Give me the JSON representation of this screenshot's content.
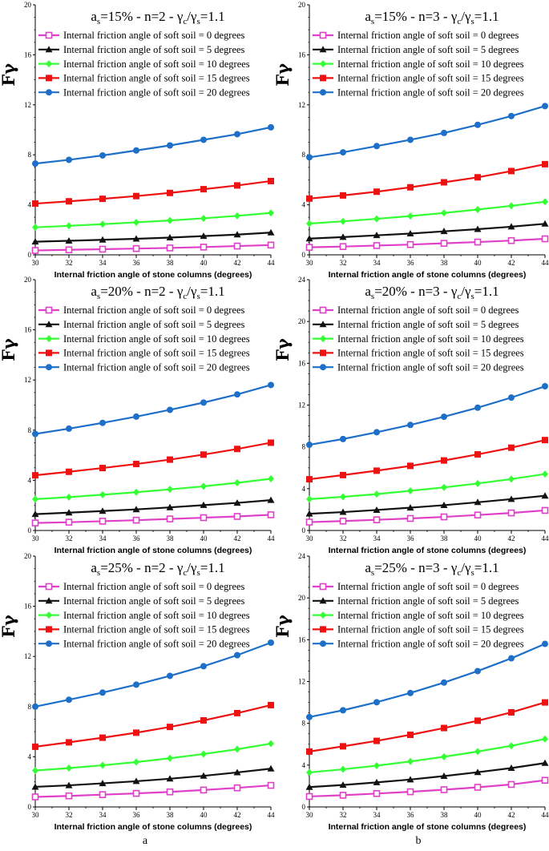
{
  "panel_labels": [
    "a",
    "b"
  ],
  "colors": {
    "s0": "#e040c8",
    "s5": "#111111",
    "s10": "#33ff33",
    "s15": "#ee1111",
    "s20": "#1e6fc8"
  },
  "chart_data": [
    {
      "type": "line",
      "col": 0,
      "row": 0,
      "title": {
        "a_pct": "15%",
        "n": "2",
        "ratio": "1.1"
      },
      "xlabel": "Internal friction angle of stone columns (degrees)",
      "ylabel": "Fγ",
      "xlim": [
        30,
        44
      ],
      "ylim": [
        0,
        20
      ],
      "xticks": [
        "30",
        "32",
        "34",
        "36",
        "38",
        "40",
        "42",
        "44"
      ],
      "yticks": [
        "0",
        "4",
        "8",
        "12",
        "16",
        "20"
      ],
      "x": [
        30,
        32,
        34,
        36,
        38,
        40,
        42,
        44
      ],
      "legend": "top",
      "series": [
        {
          "name": "Internal friction angle of soft soil = 0 degrees",
          "color": "#e040c8",
          "marker": "square-open",
          "values": [
            0.35,
            0.4,
            0.45,
            0.5,
            0.55,
            0.62,
            0.7,
            0.78
          ]
        },
        {
          "name": "Internal friction angle of soft soil = 5 degrees",
          "color": "#111111",
          "marker": "triangle",
          "values": [
            1.05,
            1.12,
            1.2,
            1.28,
            1.38,
            1.5,
            1.62,
            1.78
          ]
        },
        {
          "name": "Internal friction angle of soft soil = 10 degrees",
          "color": "#33ff33",
          "marker": "diamond",
          "values": [
            2.2,
            2.32,
            2.45,
            2.6,
            2.75,
            2.92,
            3.12,
            3.35
          ]
        },
        {
          "name": "Internal friction angle of soft soil = 15 degrees",
          "color": "#ee1111",
          "marker": "square",
          "values": [
            4.1,
            4.28,
            4.48,
            4.7,
            4.95,
            5.25,
            5.55,
            5.9
          ]
        },
        {
          "name": "Internal friction angle of soft soil = 20 degrees",
          "color": "#1e6fc8",
          "marker": "circle",
          "values": [
            7.3,
            7.6,
            7.95,
            8.35,
            8.75,
            9.2,
            9.65,
            10.2
          ]
        }
      ]
    },
    {
      "type": "line",
      "col": 1,
      "row": 0,
      "title": {
        "a_pct": "15%",
        "n": "3",
        "ratio": "1.1"
      },
      "xlabel": "Internal friction angle of stone columns (degrees)",
      "ylabel": "Fγ",
      "xlim": [
        30,
        44
      ],
      "ylim": [
        0,
        20
      ],
      "xticks": [
        "30",
        "32",
        "34",
        "36",
        "38",
        "40",
        "42",
        "44"
      ],
      "yticks": [
        "0",
        "4",
        "8",
        "12",
        "16",
        "20"
      ],
      "x": [
        30,
        32,
        34,
        36,
        38,
        40,
        42,
        44
      ],
      "legend": "top",
      "series": [
        {
          "name": "Internal friction angle of soft soil = 0 degrees",
          "color": "#e040c8",
          "marker": "square-open",
          "values": [
            0.6,
            0.66,
            0.74,
            0.82,
            0.92,
            1.02,
            1.14,
            1.28
          ]
        },
        {
          "name": "Internal friction angle of soft soil = 5 degrees",
          "color": "#111111",
          "marker": "triangle",
          "values": [
            1.3,
            1.42,
            1.56,
            1.7,
            1.88,
            2.05,
            2.25,
            2.48
          ]
        },
        {
          "name": "Internal friction angle of soft soil = 10 degrees",
          "color": "#33ff33",
          "marker": "diamond",
          "values": [
            2.5,
            2.68,
            2.88,
            3.1,
            3.35,
            3.62,
            3.92,
            4.25
          ]
        },
        {
          "name": "Internal friction angle of soft soil = 15 degrees",
          "color": "#ee1111",
          "marker": "square",
          "values": [
            4.5,
            4.75,
            5.05,
            5.4,
            5.8,
            6.2,
            6.7,
            7.25
          ]
        },
        {
          "name": "Internal friction angle of soft soil = 20 degrees",
          "color": "#1e6fc8",
          "marker": "circle",
          "values": [
            7.8,
            8.2,
            8.7,
            9.2,
            9.75,
            10.4,
            11.1,
            11.9
          ]
        }
      ]
    },
    {
      "type": "line",
      "col": 0,
      "row": 1,
      "title": {
        "a_pct": "20%",
        "n": "2",
        "ratio": "1.1"
      },
      "xlabel": "Internal friction angle of stone columns (degrees)",
      "ylabel": "Fγ",
      "xlim": [
        30,
        44
      ],
      "ylim": [
        0,
        20
      ],
      "xticks": [
        "30",
        "32",
        "34",
        "36",
        "38",
        "40",
        "42",
        "44"
      ],
      "yticks": [
        "0",
        "4",
        "8",
        "12",
        "16",
        "20"
      ],
      "x": [
        30,
        32,
        34,
        36,
        38,
        40,
        42,
        44
      ],
      "legend": "top",
      "series": [
        {
          "name": "Internal friction angle of soft soil = 0 degrees",
          "color": "#e040c8",
          "marker": "square-open",
          "values": [
            0.6,
            0.66,
            0.74,
            0.82,
            0.92,
            1.02,
            1.12,
            1.25
          ]
        },
        {
          "name": "Internal friction angle of soft soil = 5 degrees",
          "color": "#111111",
          "marker": "triangle",
          "values": [
            1.3,
            1.42,
            1.55,
            1.68,
            1.84,
            2.02,
            2.2,
            2.42
          ]
        },
        {
          "name": "Internal friction angle of soft soil = 10 degrees",
          "color": "#33ff33",
          "marker": "diamond",
          "values": [
            2.5,
            2.66,
            2.85,
            3.05,
            3.28,
            3.52,
            3.8,
            4.12
          ]
        },
        {
          "name": "Internal friction angle of soft soil = 15 degrees",
          "color": "#ee1111",
          "marker": "square",
          "values": [
            4.4,
            4.68,
            4.98,
            5.3,
            5.65,
            6.05,
            6.5,
            7.0
          ]
        },
        {
          "name": "Internal friction angle of soft soil = 20 degrees",
          "color": "#1e6fc8",
          "marker": "circle",
          "values": [
            7.7,
            8.12,
            8.58,
            9.08,
            9.62,
            10.2,
            10.85,
            11.6
          ]
        }
      ]
    },
    {
      "type": "line",
      "col": 1,
      "row": 1,
      "title": {
        "a_pct": "20%",
        "n": "3",
        "ratio": "1.1"
      },
      "xlabel": "Internal friction angle of stone columns (degrees)",
      "ylabel": "Fγ",
      "xlim": [
        30,
        44
      ],
      "ylim": [
        0,
        24
      ],
      "xticks": [
        "30",
        "32",
        "34",
        "36",
        "38",
        "40",
        "42",
        "44"
      ],
      "yticks": [
        "0",
        "4",
        "8",
        "12",
        "16",
        "20",
        "24"
      ],
      "x": [
        30,
        32,
        34,
        36,
        38,
        40,
        42,
        44
      ],
      "legend": "top",
      "series": [
        {
          "name": "Internal friction angle of soft soil = 0 degrees",
          "color": "#e040c8",
          "marker": "square-open",
          "values": [
            0.8,
            0.9,
            1.02,
            1.15,
            1.3,
            1.48,
            1.68,
            1.92
          ]
        },
        {
          "name": "Internal friction angle of soft soil = 5 degrees",
          "color": "#111111",
          "marker": "triangle",
          "values": [
            1.6,
            1.76,
            1.96,
            2.18,
            2.42,
            2.7,
            3.0,
            3.32
          ]
        },
        {
          "name": "Internal friction angle of soft soil = 10 degrees",
          "color": "#33ff33",
          "marker": "diamond",
          "values": [
            3.0,
            3.22,
            3.48,
            3.8,
            4.12,
            4.5,
            4.92,
            5.4
          ]
        },
        {
          "name": "Internal friction angle of soft soil = 15 degrees",
          "color": "#ee1111",
          "marker": "square",
          "values": [
            4.9,
            5.3,
            5.72,
            6.18,
            6.7,
            7.28,
            7.92,
            8.65
          ]
        },
        {
          "name": "Internal friction angle of soft soil = 20 degrees",
          "color": "#1e6fc8",
          "marker": "circle",
          "values": [
            8.2,
            8.75,
            9.4,
            10.1,
            10.88,
            11.75,
            12.72,
            13.8
          ]
        }
      ]
    },
    {
      "type": "line",
      "col": 0,
      "row": 2,
      "title": {
        "a_pct": "25%",
        "n": "2",
        "ratio": "1.1"
      },
      "xlabel": "Internal friction angle of stone columns (degrees)",
      "ylabel": "Fγ",
      "xlim": [
        30,
        44
      ],
      "ylim": [
        0,
        20
      ],
      "xticks": [
        "30",
        "32",
        "34",
        "36",
        "38",
        "40",
        "42",
        "44"
      ],
      "yticks": [
        "0",
        "4",
        "8",
        "12",
        "16",
        "20"
      ],
      "x": [
        30,
        32,
        34,
        36,
        38,
        40,
        42,
        44
      ],
      "legend": "top",
      "series": [
        {
          "name": "Internal friction angle of soft soil = 0 degrees",
          "color": "#e040c8",
          "marker": "square-open",
          "values": [
            0.8,
            0.88,
            0.98,
            1.08,
            1.2,
            1.35,
            1.52,
            1.72
          ]
        },
        {
          "name": "Internal friction angle of soft soil = 5 degrees",
          "color": "#111111",
          "marker": "triangle",
          "values": [
            1.6,
            1.72,
            1.88,
            2.05,
            2.25,
            2.48,
            2.75,
            3.05
          ]
        },
        {
          "name": "Internal friction angle of soft soil = 10 degrees",
          "color": "#33ff33",
          "marker": "diamond",
          "values": [
            2.9,
            3.1,
            3.32,
            3.58,
            3.88,
            4.22,
            4.6,
            5.05
          ]
        },
        {
          "name": "Internal friction angle of soft soil = 15 degrees",
          "color": "#ee1111",
          "marker": "square",
          "values": [
            4.8,
            5.15,
            5.52,
            5.92,
            6.38,
            6.9,
            7.48,
            8.12
          ]
        },
        {
          "name": "Internal friction angle of soft soil = 20 degrees",
          "color": "#1e6fc8",
          "marker": "circle",
          "values": [
            8.0,
            8.55,
            9.12,
            9.75,
            10.45,
            11.22,
            12.1,
            13.1
          ]
        }
      ]
    },
    {
      "type": "line",
      "col": 1,
      "row": 2,
      "title": {
        "a_pct": "25%",
        "n": "3",
        "ratio": "1.1"
      },
      "xlabel": "Internal friction angle of stone columns (degrees)",
      "ylabel": "Fγ",
      "xlim": [
        30,
        44
      ],
      "ylim": [
        0,
        24
      ],
      "xticks": [
        "30",
        "32",
        "34",
        "36",
        "38",
        "40",
        "42",
        "44"
      ],
      "yticks": [
        "0",
        "4",
        "8",
        "12",
        "16",
        "20",
        "24"
      ],
      "x": [
        30,
        32,
        34,
        36,
        38,
        40,
        42,
        44
      ],
      "legend": "top",
      "series": [
        {
          "name": "Internal friction angle of soft soil = 0 degrees",
          "color": "#e040c8",
          "marker": "square-open",
          "values": [
            1.0,
            1.12,
            1.28,
            1.45,
            1.65,
            1.88,
            2.15,
            2.55
          ]
        },
        {
          "name": "Internal friction angle of soft soil = 5 degrees",
          "color": "#111111",
          "marker": "triangle",
          "values": [
            1.9,
            2.1,
            2.35,
            2.62,
            2.95,
            3.32,
            3.72,
            4.2
          ]
        },
        {
          "name": "Internal friction angle of soft soil = 10 degrees",
          "color": "#33ff33",
          "marker": "diamond",
          "values": [
            3.3,
            3.6,
            3.95,
            4.35,
            4.8,
            5.3,
            5.85,
            6.5
          ]
        },
        {
          "name": "Internal friction angle of soft soil = 15 degrees",
          "color": "#ee1111",
          "marker": "square",
          "values": [
            5.3,
            5.8,
            6.32,
            6.9,
            7.55,
            8.25,
            9.05,
            10.0
          ]
        },
        {
          "name": "Internal friction angle of soft soil = 20 degrees",
          "color": "#1e6fc8",
          "marker": "circle",
          "values": [
            8.6,
            9.25,
            10.02,
            10.9,
            11.9,
            13.0,
            14.22,
            15.6
          ]
        }
      ]
    }
  ]
}
